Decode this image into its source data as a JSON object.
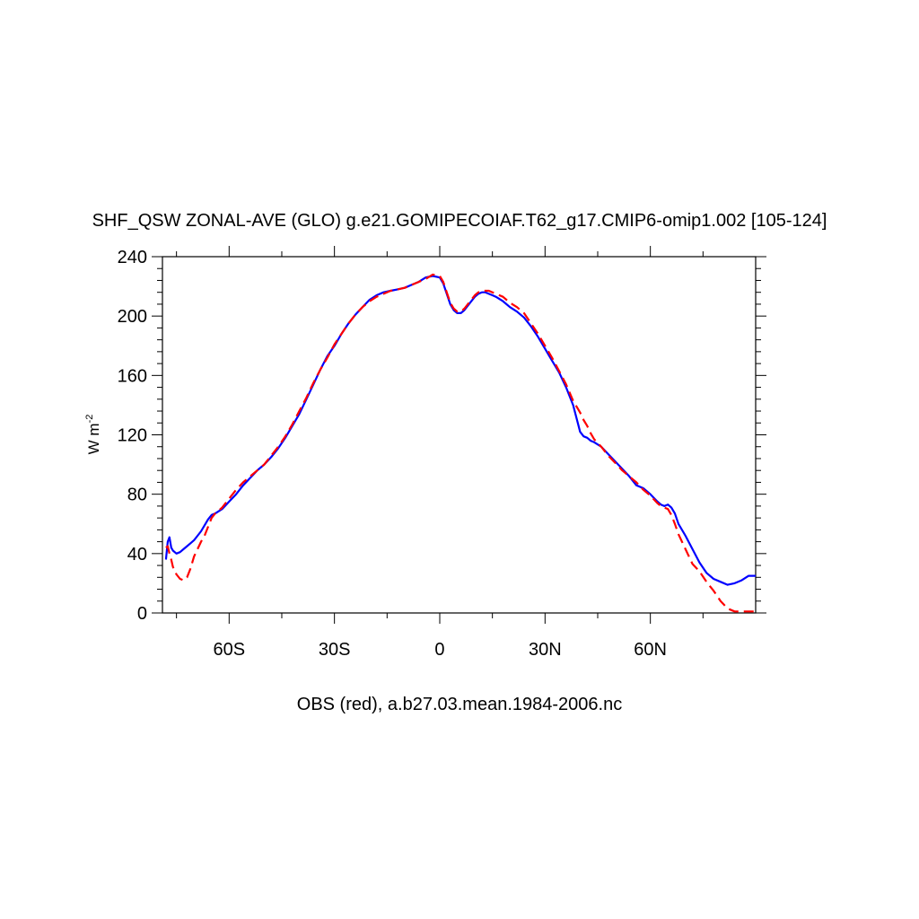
{
  "chart_data": {
    "type": "line",
    "title": "SHF_QSW ZONAL-AVE (GLO) g.e21.GOMIPECOIAF.T62_g17.CMIP6-omip1.002 [105-124]",
    "ylabel": "W m",
    "ylabel_sup": "-2",
    "xlabel": "OBS (red), a.b27.03.mean.1984-2006.nc",
    "xlim": [
      -79,
      90
    ],
    "ylim": [
      0,
      240
    ],
    "yticks": [
      0,
      40,
      80,
      120,
      160,
      200,
      240
    ],
    "ytick_labels": [
      "0",
      "40",
      "80",
      "120",
      "160",
      "200",
      "240"
    ],
    "xticks": [
      -60,
      -30,
      0,
      30,
      60
    ],
    "xtick_labels": [
      "60S",
      "30S",
      "0",
      "30N",
      "60N"
    ],
    "grid": false,
    "series": [
      {
        "color": "#0000ff",
        "dash": "solid",
        "x": [
          -78,
          -77.5,
          -77,
          -76.5,
          -76,
          -75,
          -74,
          -73,
          -72,
          -71,
          -70,
          -69,
          -68,
          -67,
          -66,
          -65,
          -64,
          -62,
          -60,
          -58,
          -56,
          -54,
          -52,
          -50,
          -48,
          -46,
          -44,
          -42,
          -40,
          -38,
          -36,
          -34,
          -32,
          -30,
          -28,
          -26,
          -24,
          -22,
          -20,
          -18,
          -16,
          -14,
          -12,
          -10,
          -8,
          -6,
          -4,
          -2,
          0,
          1,
          2,
          3,
          4,
          5,
          6,
          7,
          8,
          9,
          10,
          11,
          12,
          13,
          14,
          15,
          16,
          18,
          20,
          22,
          24,
          26,
          28,
          30,
          32,
          34,
          36,
          38,
          40,
          41,
          42,
          43,
          44,
          46,
          48,
          50,
          52,
          54,
          56,
          58,
          60,
          62,
          63,
          64,
          65,
          66,
          67,
          68,
          70,
          72,
          74,
          76,
          78,
          80,
          82,
          84,
          86,
          88,
          90
        ],
        "y": [
          36,
          48,
          51,
          44,
          42,
          40,
          41,
          43,
          45,
          47,
          49,
          52,
          55,
          59,
          63,
          66,
          67,
          70,
          75,
          80,
          86,
          91,
          96,
          100,
          105,
          111,
          118,
          126,
          134,
          144,
          154,
          164,
          173,
          180,
          188,
          195,
          201,
          206,
          211,
          214,
          216,
          217,
          218,
          219,
          221,
          223,
          226,
          227,
          226,
          222,
          215,
          208,
          204,
          202,
          202,
          204,
          207,
          210,
          213,
          215,
          216,
          216,
          215,
          214,
          213,
          210,
          206,
          203,
          199,
          193,
          186,
          178,
          170,
          162,
          152,
          140,
          122,
          119,
          118,
          116,
          115,
          112,
          107,
          102,
          97,
          92,
          86,
          84,
          80,
          75,
          73,
          72,
          73,
          71,
          67,
          60,
          52,
          43,
          34,
          27,
          23,
          21,
          19,
          20,
          22,
          25,
          25
        ]
      },
      {
        "color": "#ff0000",
        "dash": "dashed",
        "x": [
          -78,
          -77.5,
          -77,
          -76.5,
          -76,
          -75,
          -74,
          -73,
          -72,
          -71,
          -70,
          -69,
          -68,
          -67,
          -66,
          -65,
          -64,
          -62,
          -60,
          -58,
          -56,
          -54,
          -52,
          -50,
          -48,
          -46,
          -44,
          -42,
          -40,
          -38,
          -36,
          -34,
          -32,
          -30,
          -28,
          -26,
          -24,
          -22,
          -20,
          -18,
          -16,
          -14,
          -12,
          -10,
          -8,
          -6,
          -4,
          -2,
          0,
          1,
          2,
          3,
          4,
          5,
          6,
          7,
          8,
          9,
          10,
          11,
          12,
          13,
          14,
          15,
          16,
          18,
          20,
          22,
          24,
          26,
          28,
          30,
          32,
          34,
          36,
          38,
          40,
          41,
          42,
          43,
          44,
          46,
          48,
          50,
          52,
          54,
          56,
          58,
          60,
          62,
          63,
          64,
          65,
          66,
          67,
          68,
          70,
          72,
          74,
          76,
          78,
          80,
          82,
          84,
          86,
          88,
          90
        ],
        "y": [
          44,
          45,
          40,
          36,
          31,
          26,
          23,
          22,
          24,
          30,
          38,
          43,
          48,
          52,
          58,
          64,
          67,
          71,
          77,
          83,
          88,
          92,
          96,
          100,
          106,
          112,
          119,
          127,
          136,
          145,
          155,
          164,
          172,
          181,
          188,
          195,
          201,
          206,
          210,
          213,
          215,
          217,
          218,
          219,
          221,
          223,
          225,
          228,
          227,
          223,
          216,
          209,
          205,
          203,
          203,
          205,
          208,
          211,
          214,
          216,
          217,
          217,
          217,
          216,
          215,
          213,
          209,
          206,
          202,
          195,
          188,
          180,
          172,
          163,
          154,
          143,
          135,
          130,
          126,
          121,
          117,
          112,
          106,
          101,
          96,
          92,
          88,
          83,
          79,
          74,
          72,
          71,
          70,
          66,
          60,
          53,
          43,
          33,
          28,
          21,
          15,
          8,
          3,
          1,
          1,
          1,
          1
        ]
      }
    ]
  }
}
